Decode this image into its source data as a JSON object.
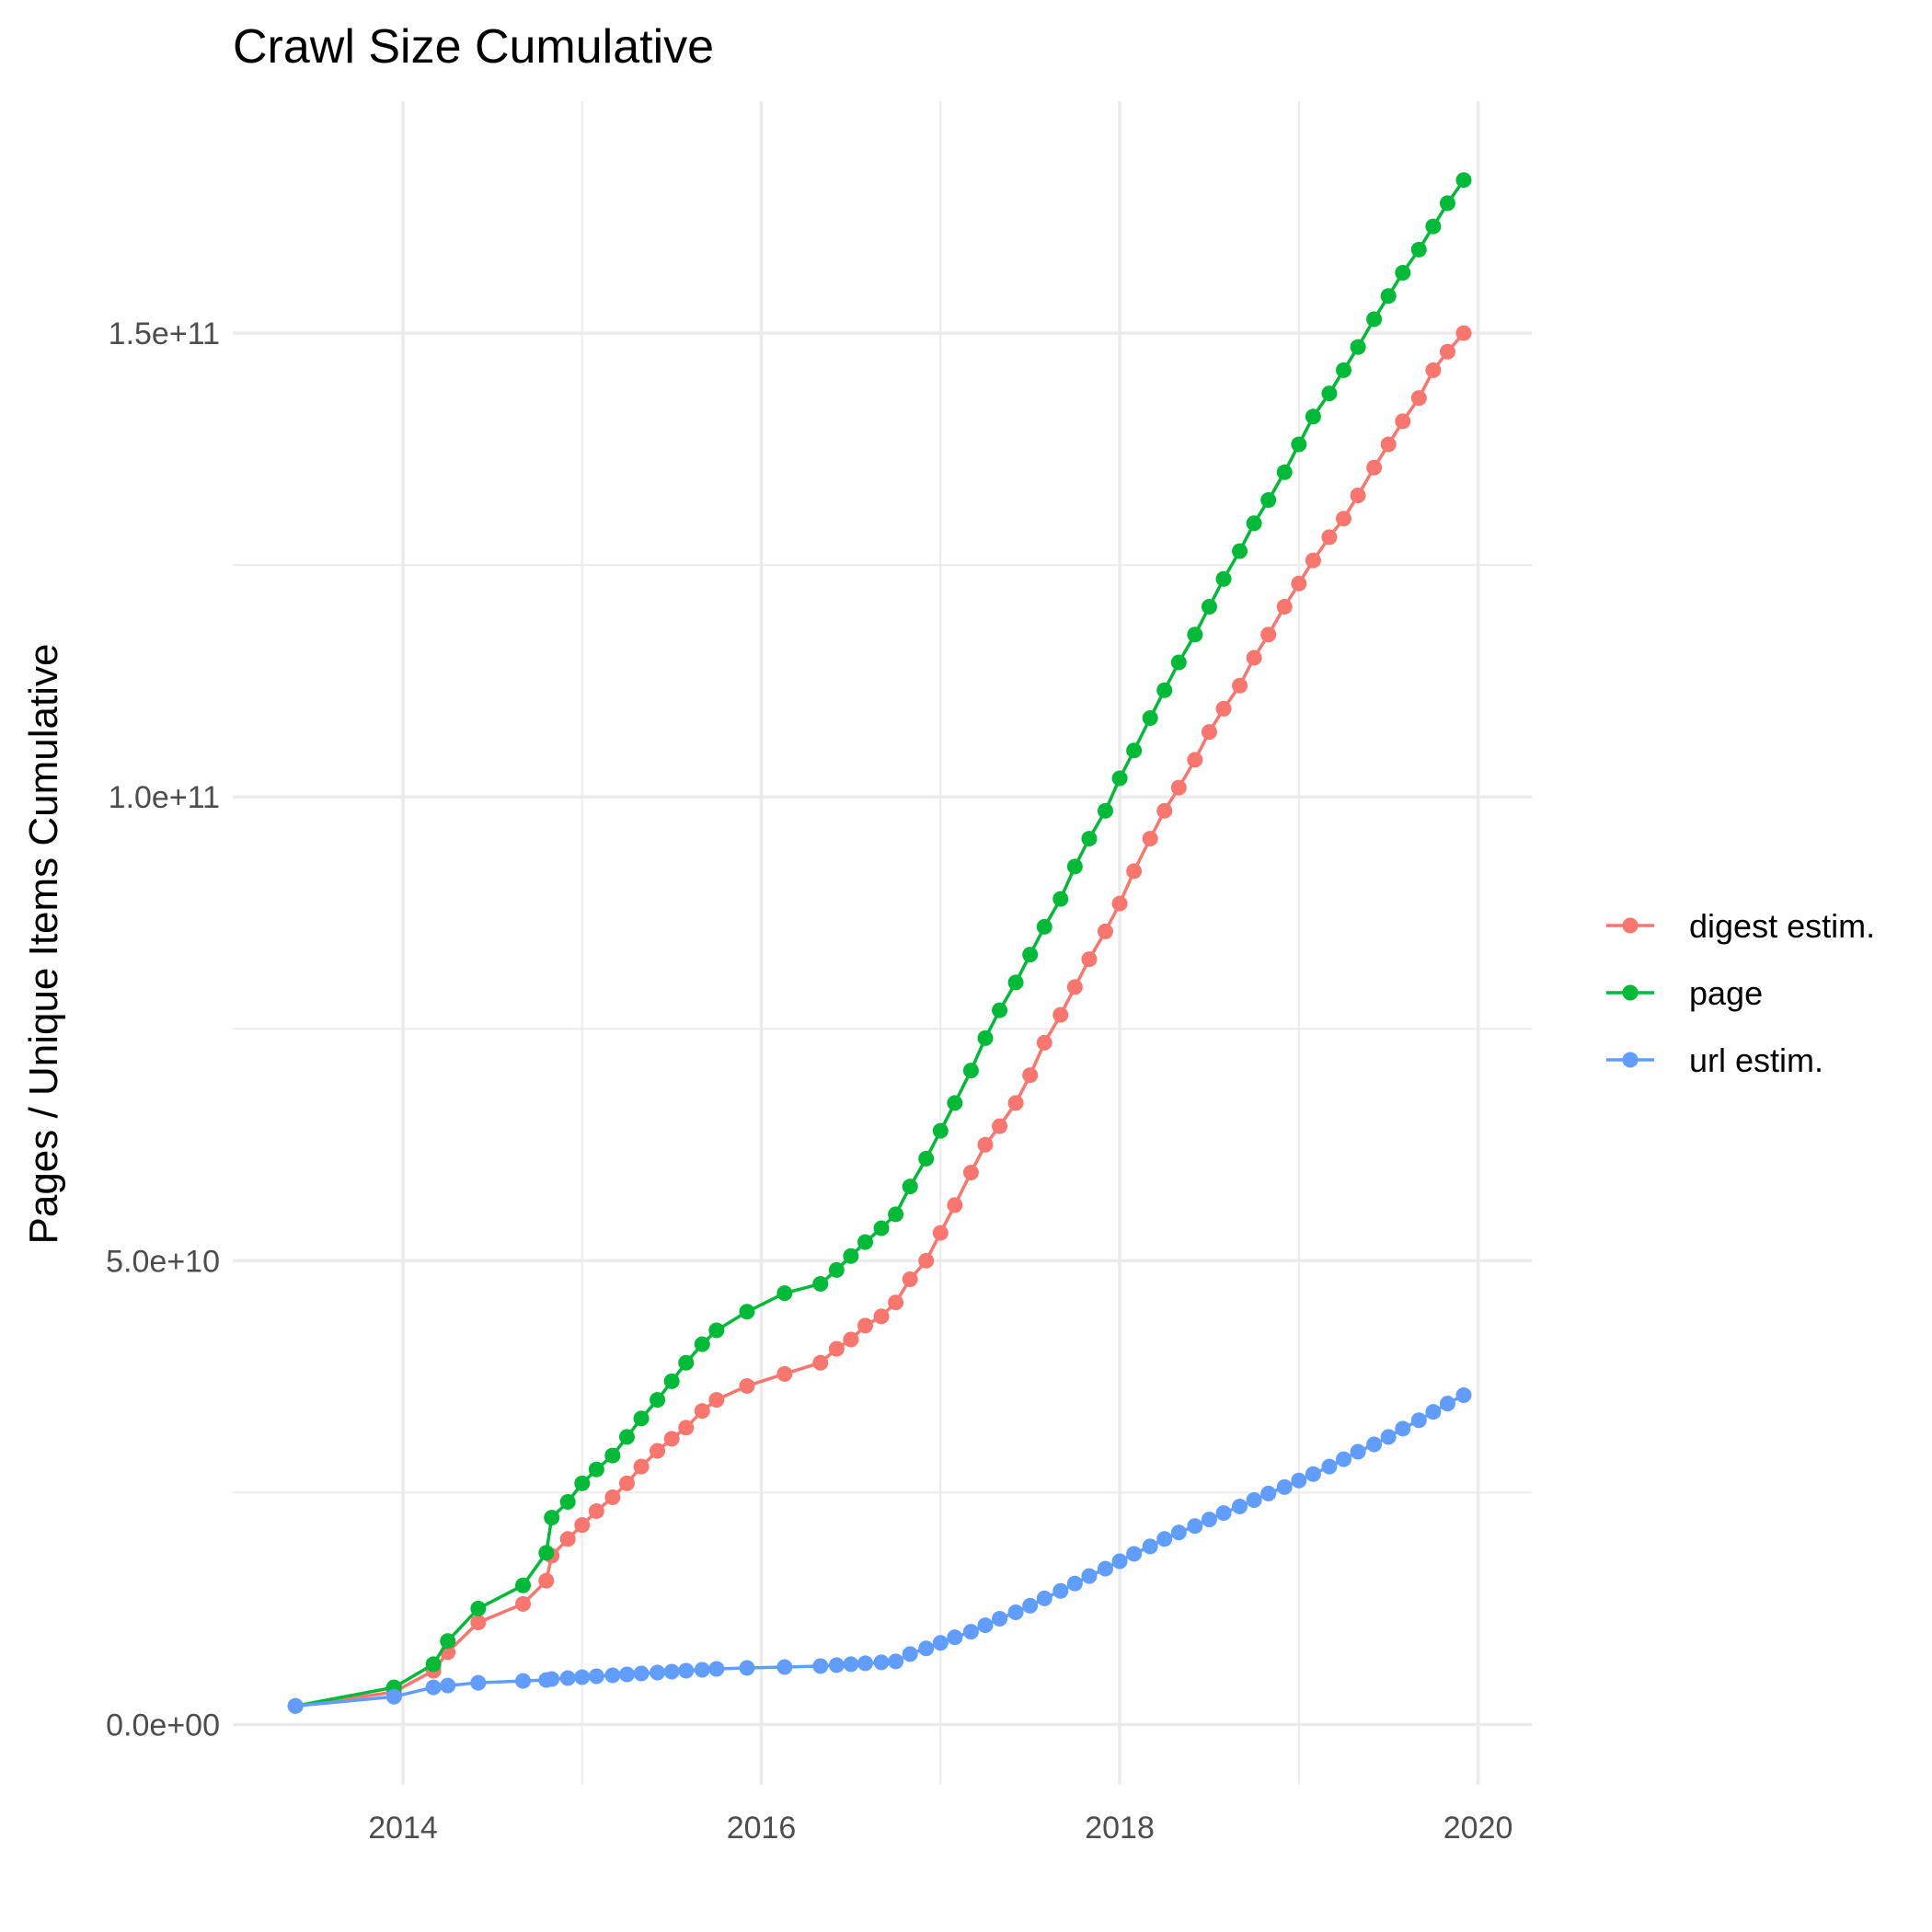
{
  "chart_data": {
    "type": "line",
    "title": "Crawl Size Cumulative",
    "xlabel": "",
    "ylabel": "Pages / Unique Items Cumulative",
    "xlim": [
      2013.05,
      2020.3
    ],
    "ylim": [
      -6500000000,
      175000000000
    ],
    "x_ticks": [
      2014,
      2016,
      2018,
      2020
    ],
    "x_tick_labels": [
      "2014",
      "2016",
      "2018",
      "2020"
    ],
    "y_ticks": [
      0,
      50000000000,
      100000000000,
      150000000000
    ],
    "y_tick_labels": [
      "0.0e+00",
      "5.0e+10",
      "1.0e+11",
      "1.5e+11"
    ],
    "grid": true,
    "legend_position": "right",
    "x": [
      2013.4,
      2013.95,
      2014.17,
      2014.25,
      2014.42,
      2014.67,
      2014.8,
      2014.83,
      2014.92,
      2015.0,
      2015.08,
      2015.17,
      2015.25,
      2015.33,
      2015.42,
      2015.5,
      2015.58,
      2015.67,
      2015.75,
      2015.92,
      2016.13,
      2016.33,
      2016.42,
      2016.5,
      2016.58,
      2016.67,
      2016.75,
      2016.83,
      2016.92,
      2017.0,
      2017.08,
      2017.17,
      2017.25,
      2017.33,
      2017.42,
      2017.5,
      2017.58,
      2017.67,
      2017.75,
      2017.83,
      2017.92,
      2018.0,
      2018.08,
      2018.17,
      2018.25,
      2018.33,
      2018.42,
      2018.5,
      2018.58,
      2018.67,
      2018.75,
      2018.83,
      2018.92,
      2019.0,
      2019.08,
      2019.17,
      2019.25,
      2019.33,
      2019.42,
      2019.5,
      2019.58,
      2019.67,
      2019.75,
      2019.83,
      2019.92
    ],
    "series": [
      {
        "name": "digest estim.",
        "color": "#F8766D",
        "values": [
          2000000000,
          3500000000,
          5800000000,
          7800000000,
          11000000000,
          13000000000,
          15500000000,
          18200000000,
          20000000000,
          21500000000,
          23000000000,
          24500000000,
          26000000000,
          27800000000,
          29500000000,
          30800000000,
          32000000000,
          33800000000,
          35000000000,
          36500000000,
          37800000000,
          39000000000,
          40500000000,
          41500000000,
          43000000000,
          44000000000,
          45500000000,
          48000000000,
          50000000000,
          53000000000,
          56000000000,
          59500000000,
          62500000000,
          64500000000,
          67000000000,
          70000000000,
          73500000000,
          76500000000,
          79500000000,
          82500000000,
          85500000000,
          88500000000,
          92000000000,
          95500000000,
          98500000000,
          101000000000,
          104000000000,
          107000000000,
          109500000000,
          112000000000,
          115000000000,
          117500000000,
          120500000000,
          123000000000,
          125500000000,
          128000000000,
          130000000000,
          132500000000,
          135500000000,
          138000000000,
          140500000000,
          143000000000,
          146000000000,
          148000000000,
          150000000000
        ],
        "point_idx": [
          0,
          1,
          2,
          3,
          4,
          5,
          6,
          7,
          8,
          9,
          10,
          11,
          12,
          13,
          14,
          15,
          16,
          17,
          18,
          19,
          20,
          21,
          22,
          23,
          24,
          25,
          26,
          27,
          28,
          29,
          30,
          31,
          32,
          33,
          34,
          35,
          36,
          37,
          38,
          39,
          40,
          41,
          42,
          43,
          44,
          45,
          46,
          47,
          48,
          49,
          50,
          51,
          52,
          53,
          54,
          55,
          56,
          57,
          58,
          59,
          60,
          61,
          62,
          63,
          64
        ]
      },
      {
        "name": "page",
        "color": "#00BA38",
        "values": [
          2000000000,
          4000000000,
          6500000000,
          9000000000,
          12500000000,
          15000000000,
          18500000000,
          22300000000,
          24000000000,
          26000000000,
          27500000000,
          29000000000,
          31000000000,
          33000000000,
          35000000000,
          37000000000,
          39000000000,
          41000000000,
          42500000000,
          44500000000,
          46500000000,
          47500000000,
          49000000000,
          50500000000,
          52000000000,
          53500000000,
          55000000000,
          58000000000,
          61000000000,
          64000000000,
          67000000000,
          70500000000,
          74000000000,
          77000000000,
          80000000000,
          83000000000,
          86000000000,
          89000000000,
          92500000000,
          95500000000,
          98500000000,
          102000000000,
          105000000000,
          108500000000,
          111500000000,
          114500000000,
          117500000000,
          120500000000,
          123500000000,
          126500000000,
          129500000000,
          132000000000,
          135000000000,
          138000000000,
          141000000000,
          143500000000,
          146000000000,
          148500000000,
          151500000000,
          154000000000,
          156500000000,
          159000000000,
          161500000000,
          164000000000,
          166500000000
        ],
        "point_idx": [
          0,
          1,
          2,
          3,
          4,
          5,
          6,
          7,
          8,
          9,
          10,
          11,
          12,
          13,
          14,
          15,
          16,
          17,
          18,
          19,
          20,
          21,
          22,
          23,
          24,
          25,
          26,
          27,
          28,
          29,
          30,
          31,
          32,
          33,
          34,
          35,
          36,
          37,
          38,
          39,
          40,
          41,
          42,
          43,
          44,
          45,
          46,
          47,
          48,
          49,
          50,
          51,
          52,
          53,
          54,
          55,
          56,
          57,
          58,
          59,
          60,
          61,
          62,
          63,
          64
        ]
      },
      {
        "name": "url estim.",
        "color": "#619CFF",
        "values": [
          2000000000,
          3000000000,
          4000000000,
          4200000000,
          4500000000,
          4700000000,
          4800000000,
          4900000000,
          5000000000,
          5100000000,
          5200000000,
          5300000000,
          5400000000,
          5500000000,
          5600000000,
          5700000000,
          5800000000,
          5900000000,
          6000000000,
          6100000000,
          6200000000,
          6300000000,
          6400000000,
          6500000000,
          6600000000,
          6700000000,
          6800000000,
          7600000000,
          8200000000,
          8800000000,
          9400000000,
          10000000000,
          10700000000,
          11400000000,
          12100000000,
          12800000000,
          13600000000,
          14400000000,
          15200000000,
          16000000000,
          16800000000,
          17600000000,
          18400000000,
          19200000000,
          20000000000,
          20700000000,
          21400000000,
          22100000000,
          22800000000,
          23500000000,
          24200000000,
          24900000000,
          25600000000,
          26300000000,
          27000000000,
          27800000000,
          28600000000,
          29400000000,
          30200000000,
          31000000000,
          31900000000,
          32800000000,
          33700000000,
          34600000000,
          35500000000
        ],
        "point_idx": [
          0,
          1,
          2,
          3,
          4,
          5,
          6,
          7,
          8,
          9,
          10,
          11,
          12,
          13,
          14,
          15,
          16,
          17,
          18,
          19,
          20,
          21,
          22,
          23,
          24,
          25,
          26,
          27,
          28,
          29,
          30,
          31,
          32,
          33,
          34,
          35,
          36,
          37,
          38,
          39,
          40,
          41,
          42,
          43,
          44,
          45,
          46,
          47,
          48,
          49,
          50,
          51,
          52,
          53,
          54,
          55,
          56,
          57,
          58,
          59,
          60,
          61,
          62,
          63,
          64
        ]
      }
    ]
  }
}
